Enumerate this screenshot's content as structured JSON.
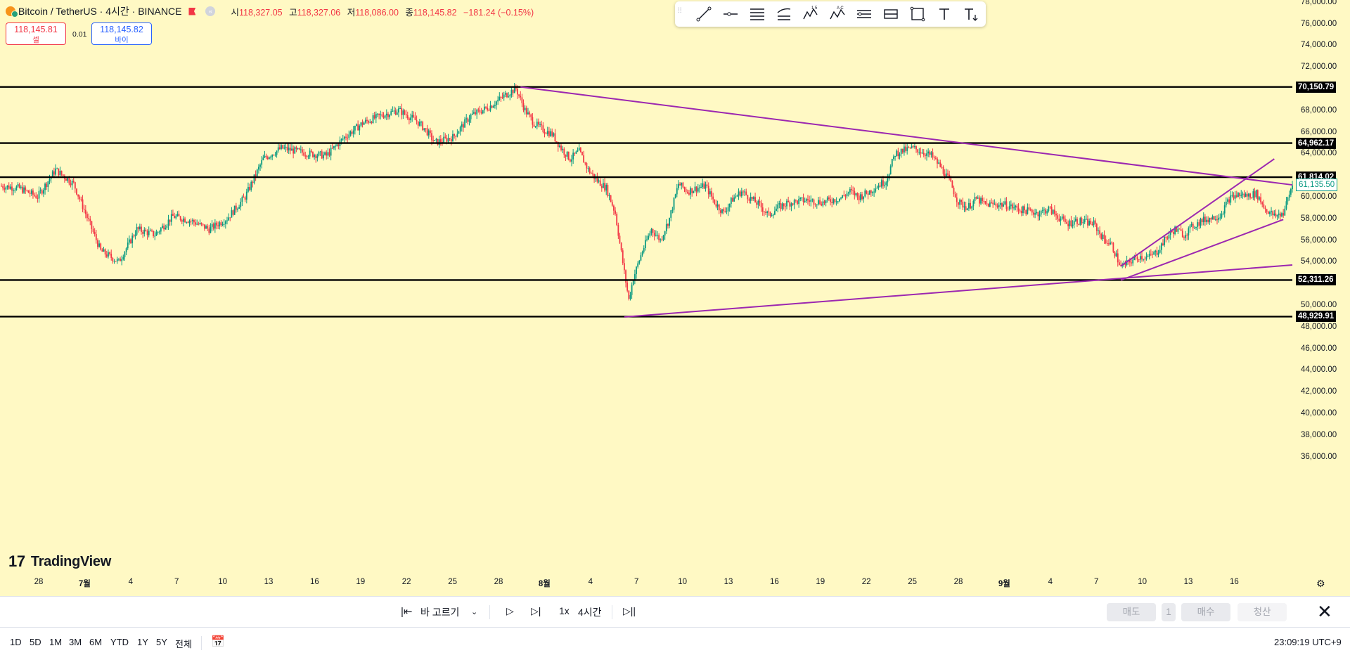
{
  "header": {
    "title": "Bitcoin / TetherUS · 4시간 · BINANCE",
    "ohlc": [
      {
        "k": "시",
        "v": "118,327.05"
      },
      {
        "k": "고",
        "v": "118,327.06"
      },
      {
        "k": "저",
        "v": "118,086.00"
      },
      {
        "k": "종",
        "v": "118,145.82"
      }
    ],
    "change": "−181.24 (−0.15%)"
  },
  "trade": {
    "sell_price": "118,145.81",
    "sell_label": "셀",
    "spread": "0.01",
    "buy_price": "118,145.82",
    "buy_label": "바이"
  },
  "toolbar_icons": [
    "trend-line-icon",
    "horizontal-ray-icon",
    "parallel-channel-icon",
    "pitchfork-icon",
    "elliott-wave-icon",
    "abcd-pattern-icon",
    "long-position-icon",
    "price-range-icon",
    "rectangle-icon",
    "text-icon",
    "anchored-text-icon"
  ],
  "logo": {
    "text": "TradingView"
  },
  "price_axis": {
    "ticks": [
      "78,000.00",
      "76,000.00",
      "74,000.00",
      "72,000.00",
      "68,000.00",
      "66,000.00",
      "64,000.00",
      "60,000.00",
      "58,000.00",
      "56,000.00",
      "54,000.00",
      "50,000.00",
      "48,000.00",
      "46,000.00",
      "44,000.00",
      "42,000.00",
      "40,000.00",
      "38,000.00",
      "36,000.00"
    ],
    "tick_values": [
      78000,
      76000,
      74000,
      72000,
      68000,
      66000,
      64000,
      60000,
      58000,
      56000,
      54000,
      50000,
      48000,
      46000,
      44000,
      42000,
      40000,
      38000,
      36000
    ],
    "level_labels": [
      "70,150.79",
      "64,962.17",
      "61,814.02",
      "52,311.26",
      "48,929.91"
    ],
    "level_values": [
      70150.79,
      64962.17,
      61814.02,
      52311.26,
      48929.91
    ],
    "current_price": "61,135.50",
    "current_value": 61135.5
  },
  "time_axis": {
    "labels": [
      "28",
      "7월",
      "4",
      "7",
      "10",
      "13",
      "16",
      "19",
      "22",
      "25",
      "28",
      "8월",
      "4",
      "7",
      "10",
      "13",
      "16",
      "19",
      "22",
      "25",
      "28",
      "9월",
      "4",
      "7",
      "10",
      "13",
      "16"
    ],
    "bold": [
      "7월",
      "8월",
      "9월"
    ]
  },
  "chart_data": {
    "type": "candlestick",
    "symbol": "Bitcoin / TetherUS",
    "interval": "4시간",
    "exchange": "BINANCE",
    "ylim": [
      35000,
      79000
    ],
    "x": [
      "6/28",
      "7/1",
      "7/4",
      "7/7",
      "7/10",
      "7/13",
      "7/16",
      "7/19",
      "7/22",
      "7/25",
      "7/28",
      "8/1",
      "8/4",
      "8/7",
      "8/10",
      "8/13",
      "8/16",
      "8/19",
      "8/22",
      "8/25",
      "8/28",
      "9/1",
      "9/4",
      "9/7",
      "9/10",
      "9/13",
      "9/16"
    ],
    "horizontal_levels": [
      70150.79,
      64962.17,
      61814.02,
      52311.26,
      48929.91
    ],
    "price_path": [
      [
        0,
        61000
      ],
      [
        2,
        60800
      ],
      [
        4,
        60000
      ],
      [
        6,
        62500
      ],
      [
        8,
        61200
      ],
      [
        11,
        55000
      ],
      [
        13,
        54000
      ],
      [
        15,
        57000
      ],
      [
        17,
        56500
      ],
      [
        19,
        58200
      ],
      [
        21,
        57800
      ],
      [
        23,
        57000
      ],
      [
        25,
        58000
      ],
      [
        27,
        60000
      ],
      [
        29,
        63500
      ],
      [
        31,
        64500
      ],
      [
        34,
        64000
      ],
      [
        36,
        63800
      ],
      [
        38,
        65500
      ],
      [
        40,
        66800
      ],
      [
        42,
        67500
      ],
      [
        44,
        68000
      ],
      [
        46,
        67000
      ],
      [
        47,
        66200
      ],
      [
        48,
        65000
      ],
      [
        50,
        65500
      ],
      [
        52,
        67500
      ],
      [
        54,
        68300
      ],
      [
        56,
        69500
      ],
      [
        57,
        70000
      ],
      [
        58,
        68000
      ],
      [
        59,
        66800
      ],
      [
        60,
        66200
      ],
      [
        61,
        65800
      ],
      [
        62,
        64500
      ],
      [
        63,
        63500
      ],
      [
        64,
        64200
      ],
      [
        65,
        62500
      ],
      [
        66,
        61500
      ],
      [
        67,
        60800
      ],
      [
        68,
        58500
      ],
      [
        69,
        53000
      ],
      [
        69.5,
        50500
      ],
      [
        70,
        52500
      ],
      [
        71,
        55000
      ],
      [
        72,
        57000
      ],
      [
        73,
        56000
      ],
      [
        74,
        58000
      ],
      [
        75,
        61200
      ],
      [
        76,
        60500
      ],
      [
        77,
        60800
      ],
      [
        78,
        61000
      ],
      [
        79,
        59500
      ],
      [
        80,
        58500
      ],
      [
        81,
        59800
      ],
      [
        82,
        60500
      ],
      [
        84,
        59200
      ],
      [
        85,
        58300
      ],
      [
        86,
        59000
      ],
      [
        87,
        59400
      ],
      [
        89,
        59700
      ],
      [
        91,
        59500
      ],
      [
        93,
        59900
      ],
      [
        94,
        60500
      ],
      [
        95,
        60000
      ],
      [
        96,
        60400
      ],
      [
        97,
        61000
      ],
      [
        98,
        61500
      ],
      [
        99,
        64000
      ],
      [
        100,
        64300
      ],
      [
        101,
        64500
      ],
      [
        103,
        63800
      ],
      [
        104,
        62800
      ],
      [
        105,
        61500
      ],
      [
        106,
        59500
      ],
      [
        107,
        59000
      ],
      [
        108,
        59800
      ],
      [
        109,
        59300
      ],
      [
        111,
        59300
      ],
      [
        113,
        58800
      ],
      [
        115,
        58500
      ],
      [
        116,
        58900
      ],
      [
        118,
        57500
      ],
      [
        119,
        57800
      ],
      [
        121,
        57500
      ],
      [
        122,
        56200
      ],
      [
        123,
        55500
      ],
      [
        124,
        53500
      ],
      [
        125,
        54000
      ],
      [
        126,
        54500
      ],
      [
        127,
        54400
      ],
      [
        128,
        54900
      ],
      [
        129,
        56200
      ],
      [
        130,
        57000
      ],
      [
        131,
        56500
      ],
      [
        132,
        57300
      ],
      [
        133,
        57800
      ],
      [
        135,
        58300
      ],
      [
        136,
        59800
      ],
      [
        137,
        60200
      ],
      [
        138,
        60100
      ],
      [
        139,
        60300
      ],
      [
        140,
        58900
      ],
      [
        141,
        58200
      ],
      [
        142,
        58500
      ],
      [
        143,
        61100
      ]
    ],
    "trend_lines": [
      {
        "from": [
          57.5,
          70150
        ],
        "to": [
          143,
          61100
        ]
      },
      {
        "from": [
          69,
          48900
        ],
        "to": [
          143,
          53700
        ]
      },
      {
        "from": [
          124,
          53600
        ],
        "to": [
          141,
          63500
        ]
      },
      {
        "from": [
          124,
          52300
        ],
        "to": [
          142,
          57900
        ]
      }
    ]
  },
  "replay_bar": {
    "select_bar": "바 고르기",
    "speed": "1x",
    "interval": "4시간",
    "sell": "매도",
    "qty": "1",
    "buy": "매수",
    "close": "청산"
  },
  "range_bar": {
    "ranges": [
      "1D",
      "5D",
      "1M",
      "3M",
      "6M",
      "YTD",
      "1Y",
      "5Y",
      "전체"
    ],
    "clock": "23:09:19 UTC+9"
  },
  "colors": {
    "background": "#fff9c4",
    "up": "#089981",
    "down": "#f23645",
    "trend": "#9c27b0",
    "level": "#000000"
  }
}
